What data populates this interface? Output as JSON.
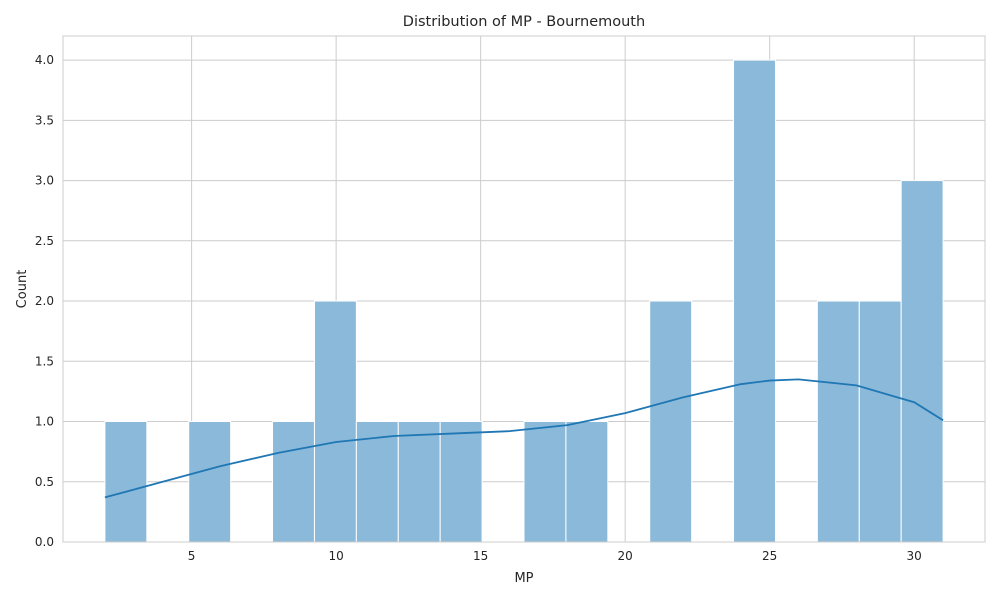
{
  "chart_data": {
    "type": "bar",
    "subtype": "histogram with kde line",
    "title": "Distribution of MP - Bournemouth",
    "xlabel": "MP",
    "ylabel": "Count",
    "xlim": [
      0.55,
      32.45
    ],
    "ylim": [
      0,
      4.2
    ],
    "xticks": [
      5,
      10,
      15,
      20,
      25,
      30
    ],
    "yticks": [
      0.0,
      0.5,
      1.0,
      1.5,
      2.0,
      2.5,
      3.0,
      3.5,
      4.0
    ],
    "xtick_labels": [
      "5",
      "10",
      "15",
      "20",
      "25",
      "30"
    ],
    "ytick_labels": [
      "0.0",
      "0.5",
      "1.0",
      "1.5",
      "2.0",
      "2.5",
      "3.0",
      "3.5",
      "4.0"
    ],
    "grid": true,
    "bin_edges": [
      2.0,
      3.45,
      4.9,
      6.35,
      7.8,
      9.25,
      10.7,
      12.15,
      13.6,
      15.05,
      16.5,
      17.95,
      19.4,
      20.85,
      22.3,
      23.75,
      25.2,
      26.65,
      28.1,
      29.55,
      31.0
    ],
    "counts": [
      1,
      0,
      1,
      0,
      1,
      2,
      1,
      1,
      1,
      0,
      1,
      1,
      0,
      2,
      0,
      4,
      0,
      2,
      2,
      3
    ],
    "kde": {
      "x": [
        2,
        4,
        6,
        8,
        10,
        12,
        14,
        16,
        18,
        20,
        22,
        24,
        25,
        26,
        28,
        30,
        31
      ],
      "y": [
        0.37,
        0.5,
        0.63,
        0.74,
        0.83,
        0.88,
        0.9,
        0.92,
        0.97,
        1.07,
        1.2,
        1.31,
        1.34,
        1.35,
        1.3,
        1.16,
        1.01
      ]
    },
    "colors": {
      "bar_fill": "#8ab9da",
      "bar_edge": "#ffffff",
      "kde_line": "#1f77b4",
      "grid": "#cccccc",
      "axes_edge": "#cccccc"
    }
  }
}
